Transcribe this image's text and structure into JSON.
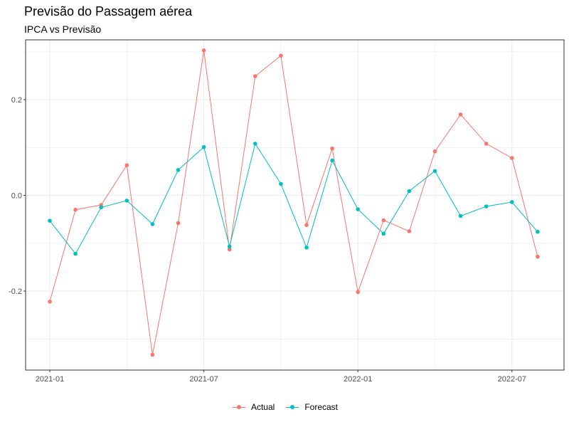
{
  "chart_data": {
    "type": "line",
    "title": "Previsão do Passagem aérea",
    "subtitle": "IPCA vs Previsão",
    "xlabel": "",
    "ylabel": "",
    "x": [
      "2021-01",
      "2021-02",
      "2021-03",
      "2021-04",
      "2021-05",
      "2021-06",
      "2021-07",
      "2021-08",
      "2021-09",
      "2021-10",
      "2021-11",
      "2021-12",
      "2022-01",
      "2022-02",
      "2022-03",
      "2022-04",
      "2022-05",
      "2022-06",
      "2022-07",
      "2022-08"
    ],
    "x_tick_labels": [
      "2021-01",
      "2021-07",
      "2022-01",
      "2022-07"
    ],
    "y_tick_labels": [
      "-0.2",
      "0.0",
      "0.2"
    ],
    "y_ticks": [
      -0.2,
      0.0,
      0.2
    ],
    "ylim": [
      -0.365,
      0.325
    ],
    "grid": true,
    "legend_position": "bottom",
    "series": [
      {
        "name": "Actual",
        "color": "#F8766D",
        "values": [
          -0.222,
          -0.03,
          -0.02,
          0.063,
          -0.333,
          -0.058,
          0.303,
          -0.113,
          0.249,
          0.292,
          -0.062,
          0.098,
          -0.202,
          -0.052,
          -0.075,
          0.092,
          0.169,
          0.108,
          0.078,
          -0.128
        ]
      },
      {
        "name": "Forecast",
        "color": "#00BFC4",
        "values": [
          -0.053,
          -0.122,
          -0.025,
          -0.011,
          -0.06,
          0.053,
          0.101,
          -0.107,
          0.108,
          0.024,
          -0.109,
          0.073,
          -0.029,
          -0.08,
          0.009,
          0.051,
          -0.043,
          -0.023,
          -0.014,
          -0.076
        ]
      }
    ]
  }
}
